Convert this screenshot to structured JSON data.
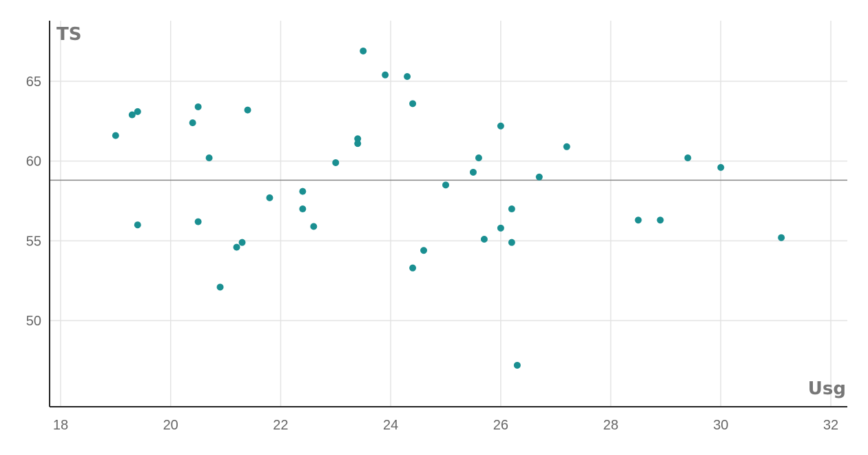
{
  "chart_data": {
    "type": "scatter",
    "xlabel": "Usg",
    "ylabel": "TS",
    "xlim": [
      17.8,
      32.3
    ],
    "ylim": [
      44.6,
      68.8
    ],
    "xticks": [
      18,
      20,
      22,
      24,
      26,
      28,
      30,
      32
    ],
    "yticks": [
      50,
      55,
      60,
      65
    ],
    "reference_line_y": 58.8,
    "grid": true,
    "colors": {
      "point": "#1a8f91",
      "reference": "#888888",
      "grid": "#e3e3e3"
    },
    "points": [
      {
        "x": 19.0,
        "y": 61.6
      },
      {
        "x": 19.3,
        "y": 62.9
      },
      {
        "x": 19.4,
        "y": 63.1
      },
      {
        "x": 19.4,
        "y": 56.0
      },
      {
        "x": 20.4,
        "y": 62.4
      },
      {
        "x": 20.5,
        "y": 63.4
      },
      {
        "x": 20.5,
        "y": 56.2
      },
      {
        "x": 20.7,
        "y": 60.2
      },
      {
        "x": 20.9,
        "y": 52.1
      },
      {
        "x": 21.2,
        "y": 54.6
      },
      {
        "x": 21.3,
        "y": 54.9
      },
      {
        "x": 21.4,
        "y": 63.2
      },
      {
        "x": 21.8,
        "y": 57.7
      },
      {
        "x": 22.4,
        "y": 58.1
      },
      {
        "x": 22.4,
        "y": 57.0
      },
      {
        "x": 22.6,
        "y": 55.9
      },
      {
        "x": 23.0,
        "y": 59.9
      },
      {
        "x": 23.4,
        "y": 61.4
      },
      {
        "x": 23.4,
        "y": 61.1
      },
      {
        "x": 23.5,
        "y": 66.9
      },
      {
        "x": 23.9,
        "y": 65.4
      },
      {
        "x": 24.3,
        "y": 65.3
      },
      {
        "x": 24.4,
        "y": 63.6
      },
      {
        "x": 24.4,
        "y": 53.3
      },
      {
        "x": 24.6,
        "y": 54.4
      },
      {
        "x": 25.0,
        "y": 58.5
      },
      {
        "x": 25.5,
        "y": 59.3
      },
      {
        "x": 25.6,
        "y": 60.2
      },
      {
        "x": 25.7,
        "y": 55.1
      },
      {
        "x": 26.0,
        "y": 62.2
      },
      {
        "x": 26.0,
        "y": 55.8
      },
      {
        "x": 26.2,
        "y": 57.0
      },
      {
        "x": 26.2,
        "y": 54.9
      },
      {
        "x": 26.3,
        "y": 47.2
      },
      {
        "x": 26.7,
        "y": 59.0
      },
      {
        "x": 27.2,
        "y": 60.9
      },
      {
        "x": 28.5,
        "y": 56.3
      },
      {
        "x": 28.9,
        "y": 56.3
      },
      {
        "x": 29.4,
        "y": 60.2
      },
      {
        "x": 30.0,
        "y": 59.6
      },
      {
        "x": 31.1,
        "y": 55.2
      }
    ]
  }
}
